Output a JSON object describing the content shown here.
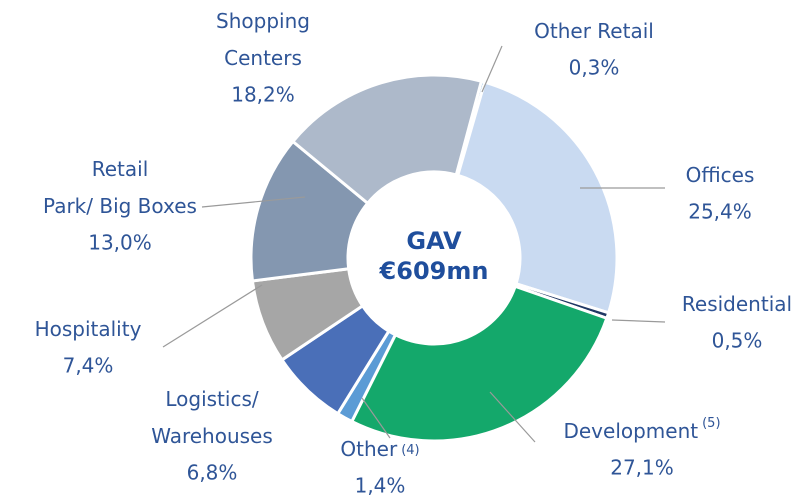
{
  "chart_data": {
    "type": "donut",
    "center_label": [
      "GAV",
      "€609mn"
    ],
    "categories": [
      "Other Retail",
      "Offices",
      "Residential",
      "Development",
      "Other",
      "Logistics/ Warehouses",
      "Hospitality",
      "Retail Park/ Big Boxes",
      "Shopping Centers"
    ],
    "label_notes": [
      null,
      null,
      null,
      "(5)",
      "(4)",
      null,
      null,
      null,
      null
    ],
    "values": [
      0.3,
      25.4,
      0.5,
      27.1,
      1.4,
      6.8,
      7.4,
      13.0,
      18.2
    ],
    "value_labels": [
      "0,3%",
      "25,4%",
      "0,5%",
      "27,1%",
      "1,4%",
      "6,8%",
      "7,4%",
      "13,0%",
      "18,2%"
    ],
    "colors": [
      "#5b9bd5",
      "#c9daf1",
      "#203864",
      "#14a86b",
      "#5b9bd5",
      "#4a6fb8",
      "#a6a6a6",
      "#8497b0",
      "#adb9ca"
    ]
  }
}
